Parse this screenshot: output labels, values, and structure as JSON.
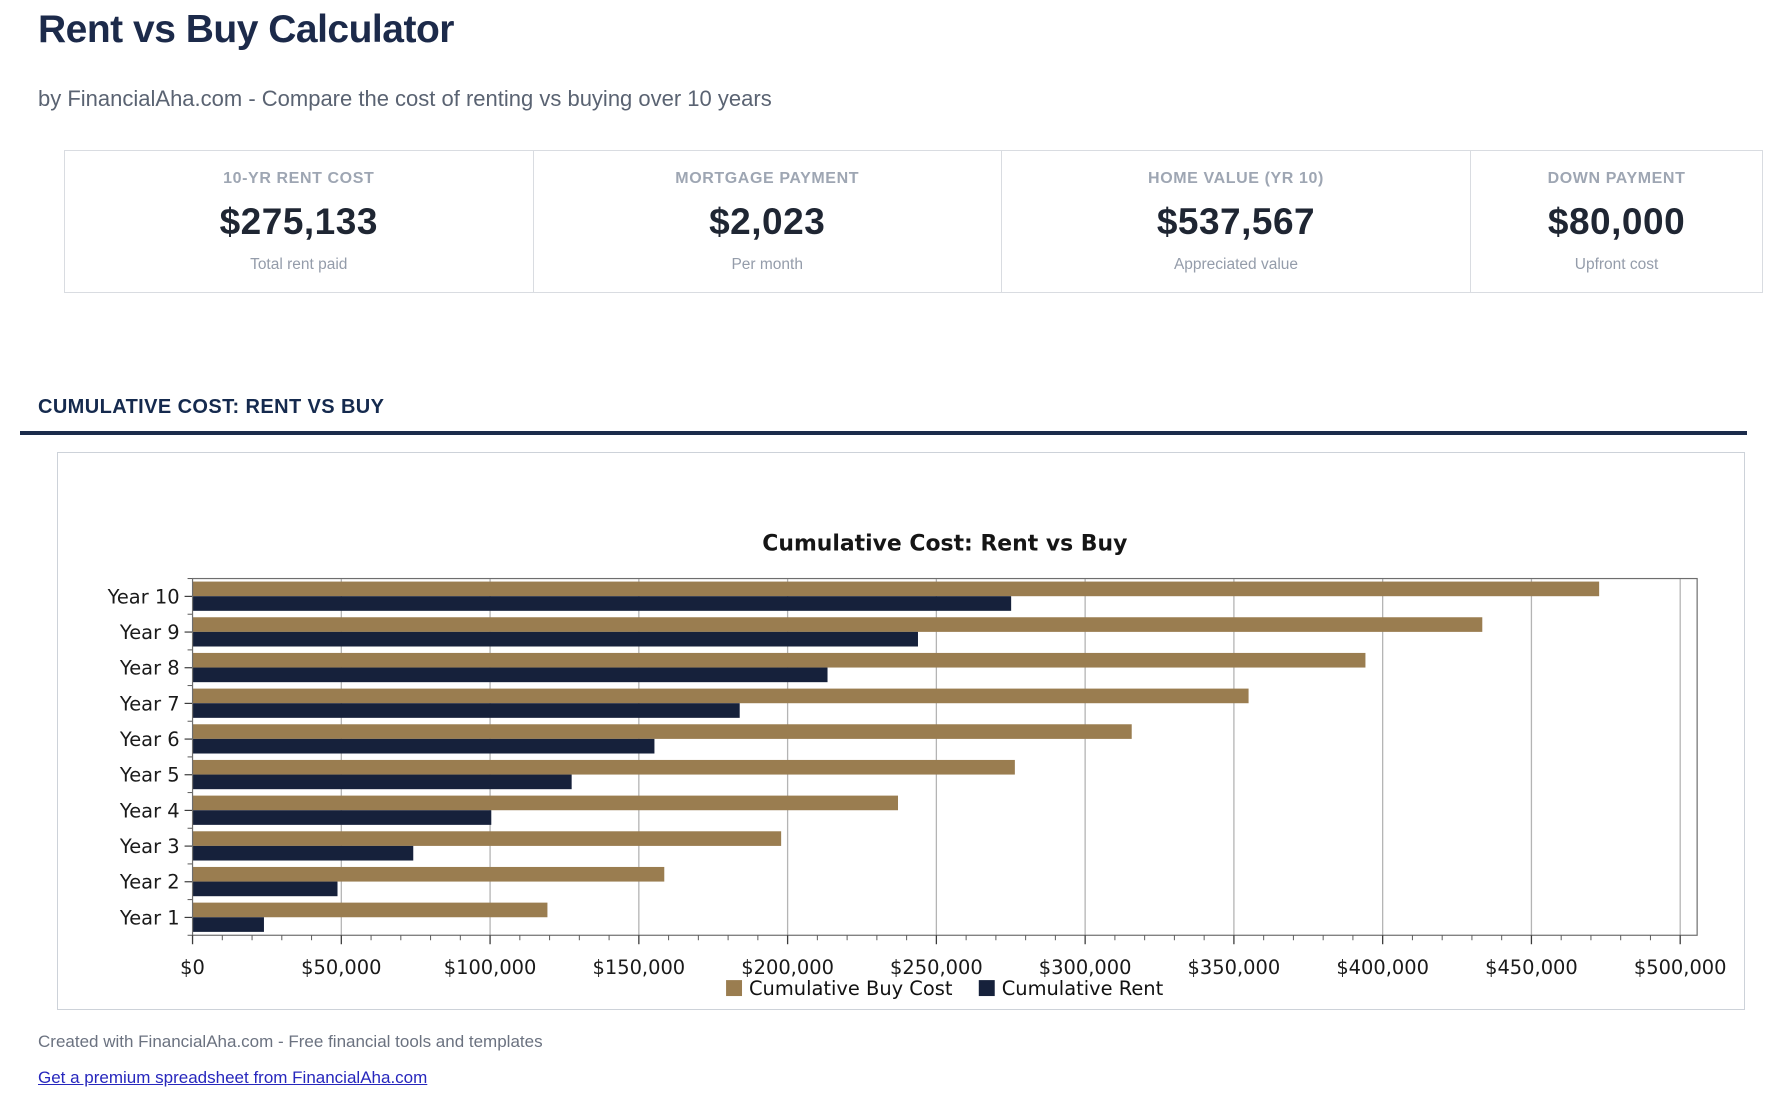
{
  "page": {
    "title": "Rent vs Buy Calculator",
    "subtitle": "by FinancialAha.com - Compare the cost of renting vs buying over 10 years"
  },
  "stats": [
    {
      "label": "10-YR RENT COST",
      "value": "$275,133",
      "sub": "Total rent paid"
    },
    {
      "label": "MORTGAGE PAYMENT",
      "value": "$2,023",
      "sub": "Per month"
    },
    {
      "label": "HOME VALUE (YR 10)",
      "value": "$537,567",
      "sub": "Appreciated value"
    },
    {
      "label": "DOWN PAYMENT",
      "value": "$80,000",
      "sub": "Upfront cost"
    }
  ],
  "section": {
    "heading": "CUMULATIVE COST: RENT VS BUY"
  },
  "chart_data": {
    "type": "bar",
    "orientation": "horizontal",
    "title": "Cumulative Cost: Rent vs Buy",
    "categories": [
      "Year 10",
      "Year 9",
      "Year 8",
      "Year 7",
      "Year 6",
      "Year 5",
      "Year 4",
      "Year 3",
      "Year 2",
      "Year 1"
    ],
    "series": [
      {
        "name": "Cumulative Buy Cost",
        "color": "#9a7d50",
        "values": [
          472760,
          433484,
          394208,
          354932,
          315656,
          276380,
          237104,
          197828,
          158552,
          119276
        ]
      },
      {
        "name": "Cumulative Rent",
        "color": "#16213b",
        "values": [
          275133,
          243819,
          213416,
          183899,
          155242,
          127419,
          100407,
          74182,
          48720,
          24000
        ]
      }
    ],
    "xlim": [
      0,
      500000
    ],
    "x_tick_step": 50000,
    "x_minor_tick_step": 10000,
    "x_tick_labels": [
      "$0",
      "$50,000",
      "$100,000",
      "$150,000",
      "$200,000",
      "$250,000",
      "$300,000",
      "$350,000",
      "$400,000",
      "$450,000",
      "$500,000"
    ],
    "grid": true,
    "grid_color": "#b4b4b4",
    "legend_position": "bottom"
  },
  "footer": {
    "credit": "Created with FinancialAha.com - Free financial tools and templates",
    "link": "Get a premium spreadsheet from FinancialAha.com"
  }
}
